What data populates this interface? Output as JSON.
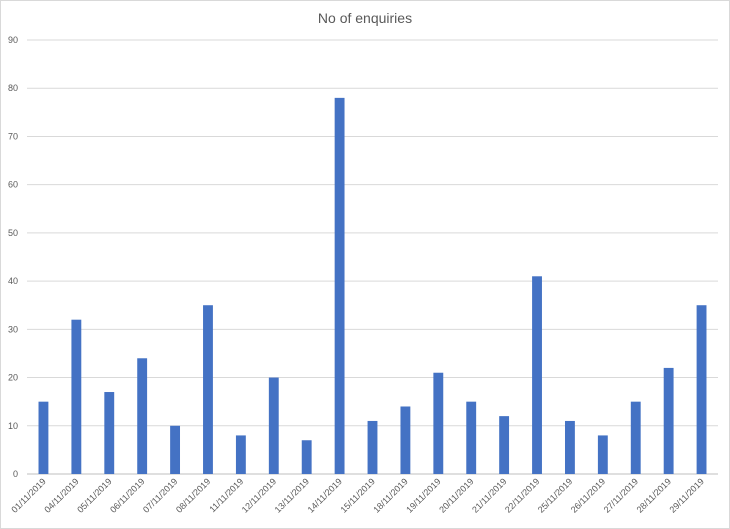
{
  "chart_data": {
    "type": "bar",
    "title": "No of enquiries",
    "xlabel": "",
    "ylabel": "",
    "ylim": [
      0,
      90
    ],
    "yticks": [
      0,
      10,
      20,
      30,
      40,
      50,
      60,
      70,
      80,
      90
    ],
    "grid": true,
    "legend": "none",
    "bar_color": "#4472c4",
    "categories": [
      "01/11/2019",
      "04/11/2019",
      "05/11/2019",
      "06/11/2019",
      "07/11/2019",
      "08/11/2019",
      "11/11/2019",
      "12/11/2019",
      "13/11/2019",
      "14/11/2019",
      "15/11/2019",
      "18/11/2019",
      "19/11/2019",
      "20/11/2019",
      "21/11/2019",
      "22/11/2019",
      "25/11/2019",
      "26/11/2019",
      "27/11/2019",
      "28/11/2019",
      "29/11/2019"
    ],
    "values": [
      15,
      32,
      17,
      24,
      10,
      35,
      8,
      20,
      7,
      78,
      11,
      14,
      21,
      15,
      12,
      41,
      11,
      8,
      15,
      22,
      35
    ]
  }
}
